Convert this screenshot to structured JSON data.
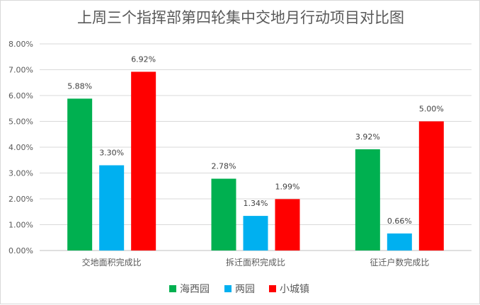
{
  "chart_data": {
    "type": "bar",
    "title": "上周三个指挥部第四轮集中交地月行动项目对比图",
    "categories": [
      "交地面积完成比",
      "拆迁面积完成比",
      "征迁户数完成比"
    ],
    "series": [
      {
        "name": "海西园",
        "color": "#00b050",
        "values": [
          5.88,
          2.78,
          3.92
        ],
        "labels": [
          "5.88%",
          "2.78%",
          "3.92%"
        ]
      },
      {
        "name": "两园",
        "color": "#00b0f0",
        "values": [
          3.3,
          1.34,
          0.66
        ],
        "labels": [
          "3.30%",
          "1.34%",
          "0.66%"
        ]
      },
      {
        "name": "小城镇",
        "color": "#ff0000",
        "values": [
          6.92,
          1.99,
          5.0
        ],
        "labels": [
          "6.92%",
          "1.99%",
          "5.00%"
        ]
      }
    ],
    "ylim": [
      0,
      8
    ],
    "yticks": [
      "0.00%",
      "1.00%",
      "2.00%",
      "3.00%",
      "4.00%",
      "5.00%",
      "6.00%",
      "7.00%",
      "8.00%"
    ],
    "grid": true,
    "legend": "bottom"
  }
}
